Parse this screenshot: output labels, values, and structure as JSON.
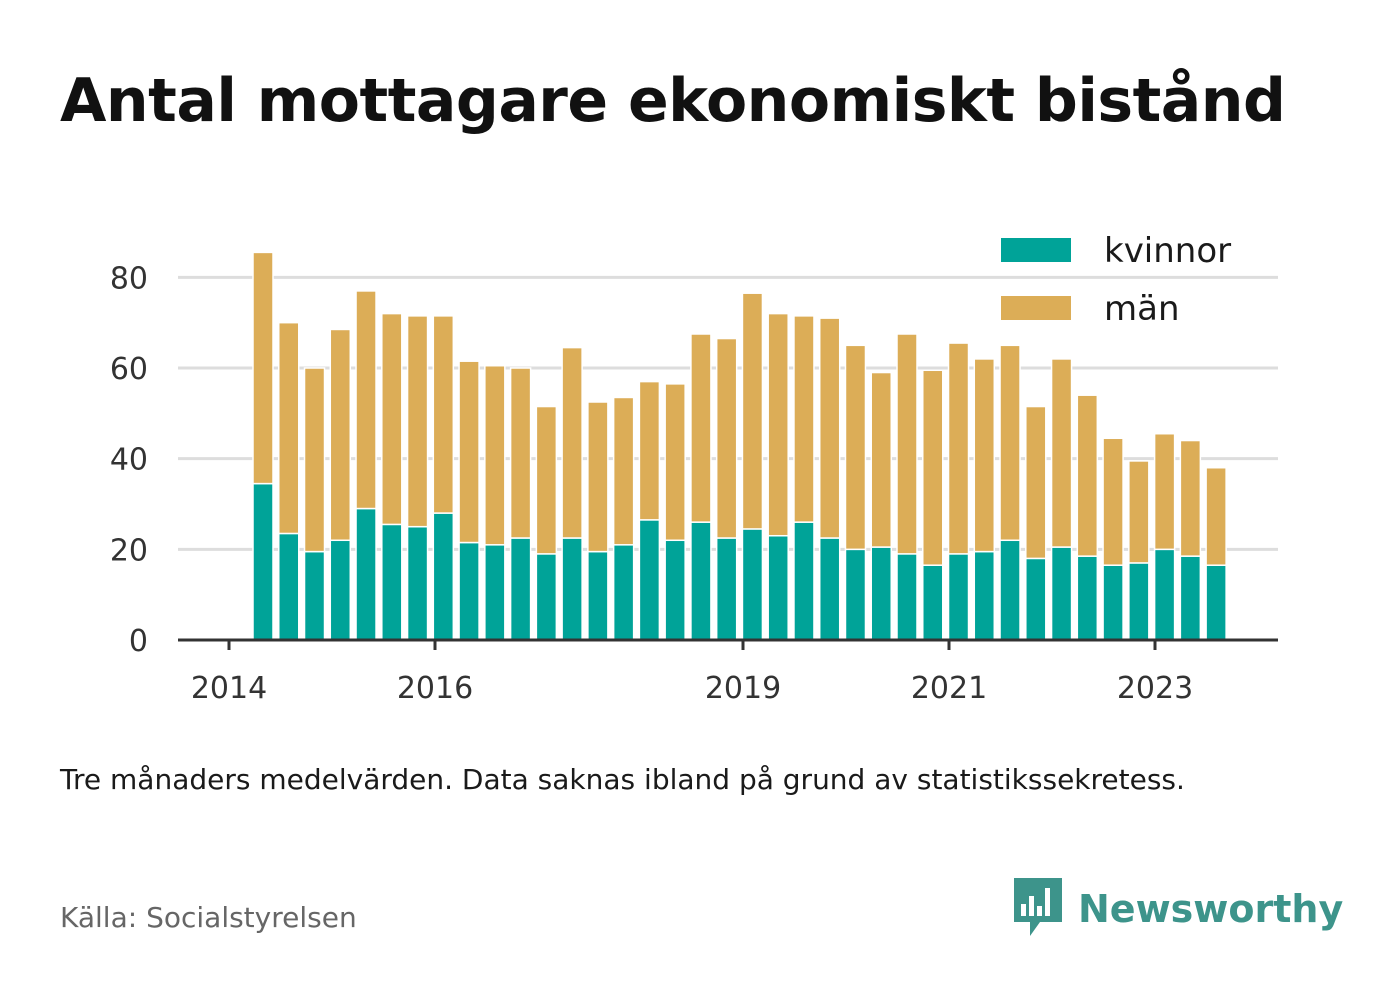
{
  "title": "Antal mottagare ekonomiskt bistånd",
  "caption": "Tre månaders medelvärden. Data saknas ibland på grund av statistikssekretess.",
  "source": "Källa: Socialstyrelsen",
  "brand": {
    "name": "Newsworthy",
    "icon": "newsworthy-logo-icon",
    "color": "#3d948b"
  },
  "colors": {
    "kvinnor": "#00a398",
    "man": "#dcad57",
    "grid": "#dddddd",
    "axis": "#333333"
  },
  "chart_data": {
    "type": "bar",
    "stacked": true,
    "series": [
      {
        "name": "kvinnor",
        "color": "#00a398",
        "values": [
          34.5,
          23.5,
          19.5,
          22,
          29,
          25.5,
          25,
          28,
          21.5,
          21,
          22.5,
          19,
          22.5,
          19.5,
          21,
          26.5,
          22,
          26,
          22.5,
          24.5,
          23,
          26,
          22.5,
          20,
          20.5,
          19,
          16.5,
          19,
          19.5,
          22,
          18,
          20.5,
          18.5,
          16.5,
          17,
          20,
          18.5,
          16.5
        ]
      },
      {
        "name": "män",
        "color": "#dcad57",
        "values": [
          51,
          46.5,
          40.5,
          46.5,
          48,
          46.5,
          46.5,
          43.5,
          40,
          39.5,
          37.5,
          32.5,
          42,
          33,
          32.5,
          30.5,
          34.5,
          41.5,
          44,
          52,
          49,
          45.5,
          48.5,
          45,
          38.5,
          48.5,
          43,
          46.5,
          42.5,
          43,
          33.5,
          41.5,
          35.5,
          28,
          22.5,
          25.5,
          25.5,
          21.5
        ]
      }
    ],
    "x_ticks": [
      "2014",
      "2016",
      "2019",
      "2021",
      "2023"
    ],
    "y_ticks": [
      "0",
      "20",
      "40",
      "60",
      "80"
    ],
    "ylim": [
      0,
      90
    ],
    "grid": true,
    "legend": {
      "position": "top-right",
      "items": [
        "kvinnor",
        "män"
      ]
    }
  }
}
